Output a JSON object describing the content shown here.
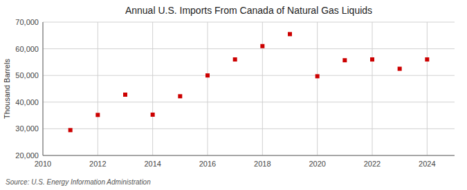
{
  "chart_data": {
    "type": "scatter",
    "title": "Annual U.S. Imports From Canada of Natural Gas Liquids",
    "ylabel": "Thousand Barrels",
    "source": "Source: U.S. Energy Information Administration",
    "x": [
      2011,
      2012,
      2013,
      2014,
      2015,
      2016,
      2017,
      2018,
      2019,
      2020,
      2021,
      2022,
      2023,
      2024
    ],
    "values": [
      29500,
      35200,
      42800,
      35300,
      42200,
      50000,
      56000,
      61000,
      65500,
      49700,
      55700,
      56000,
      52500,
      56000
    ],
    "color": "#cc0000",
    "marker": "square",
    "xlim": [
      2010,
      2025
    ],
    "ylim": [
      20000,
      70000
    ],
    "xticks": [
      2010,
      2012,
      2014,
      2016,
      2018,
      2020,
      2022,
      2024
    ],
    "yticks": [
      {
        "value": 20000,
        "label": "20,000"
      },
      {
        "value": 30000,
        "label": "30,000"
      },
      {
        "value": 40000,
        "label": "40,000"
      },
      {
        "value": 50000,
        "label": "50,000"
      },
      {
        "value": 60000,
        "label": "60,000"
      },
      {
        "value": 70000,
        "label": "70,000"
      }
    ],
    "grid": true
  }
}
